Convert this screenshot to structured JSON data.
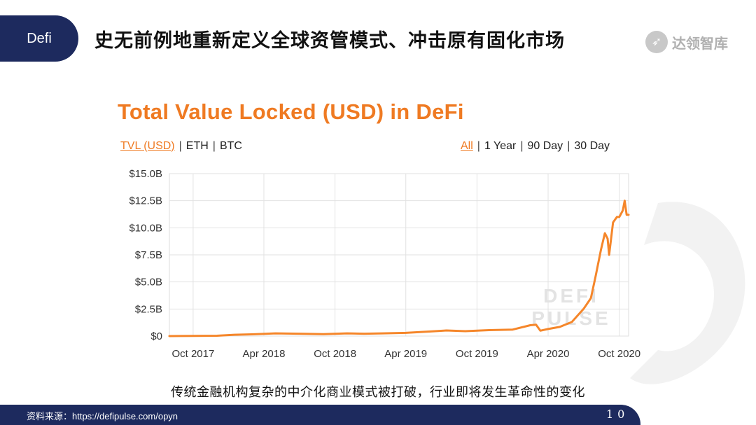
{
  "header": {
    "tag": "Defi",
    "title": "史无前例地重新定义全球资管模式、冲击原有固化市场",
    "logo_text": "达领智库",
    "logo_icon": "rocket-icon"
  },
  "chart": {
    "title": "Total Value Locked (USD) in DeFi",
    "toggles_left": [
      "TVL (USD)",
      "ETH",
      "BTC"
    ],
    "toggles_left_active": "TVL (USD)",
    "toggles_right": [
      "All",
      "1 Year",
      "90 Day",
      "30 Day"
    ],
    "toggles_right_active": "All",
    "watermark": [
      "DEFI",
      "PULSE"
    ]
  },
  "chart_data": {
    "type": "line",
    "title": "Total Value Locked (USD) in DeFi",
    "xlabel": "",
    "ylabel": "",
    "y_unit": "USD billions",
    "ylim": [
      0,
      15
    ],
    "xlim": [
      "2017-08-01",
      "2020-10-25"
    ],
    "yticks": [
      {
        "value": 0,
        "label": "$0"
      },
      {
        "value": 2.5,
        "label": "$2.5B"
      },
      {
        "value": 5,
        "label": "$5.0B"
      },
      {
        "value": 7.5,
        "label": "$7.5B"
      },
      {
        "value": 10,
        "label": "$10.0B"
      },
      {
        "value": 12.5,
        "label": "$12.5B"
      },
      {
        "value": 15,
        "label": "$15.0B"
      }
    ],
    "xticks": [
      {
        "date": "2017-10-01",
        "label": "Oct 2017"
      },
      {
        "date": "2018-04-01",
        "label": "Apr 2018"
      },
      {
        "date": "2018-10-01",
        "label": "Oct 2018"
      },
      {
        "date": "2019-04-01",
        "label": "Apr 2019"
      },
      {
        "date": "2019-10-01",
        "label": "Oct 2019"
      },
      {
        "date": "2020-04-01",
        "label": "Apr 2020"
      },
      {
        "date": "2020-10-01",
        "label": "Oct 2020"
      }
    ],
    "grid": true,
    "series": [
      {
        "color": "#f5862a",
        "points": [
          [
            "2017-08-01",
            0.0
          ],
          [
            "2017-10-01",
            0.02
          ],
          [
            "2017-12-01",
            0.03
          ],
          [
            "2018-01-15",
            0.12
          ],
          [
            "2018-03-01",
            0.16
          ],
          [
            "2018-05-01",
            0.25
          ],
          [
            "2018-07-01",
            0.22
          ],
          [
            "2018-09-01",
            0.18
          ],
          [
            "2018-11-01",
            0.25
          ],
          [
            "2018-12-15",
            0.22
          ],
          [
            "2019-02-01",
            0.25
          ],
          [
            "2019-04-01",
            0.3
          ],
          [
            "2019-06-01",
            0.42
          ],
          [
            "2019-07-15",
            0.52
          ],
          [
            "2019-09-01",
            0.45
          ],
          [
            "2019-11-01",
            0.55
          ],
          [
            "2020-01-01",
            0.6
          ],
          [
            "2020-02-15",
            1.0
          ],
          [
            "2020-03-01",
            1.05
          ],
          [
            "2020-03-12",
            0.5
          ],
          [
            "2020-04-01",
            0.65
          ],
          [
            "2020-05-01",
            0.85
          ],
          [
            "2020-06-01",
            1.3
          ],
          [
            "2020-07-01",
            2.5
          ],
          [
            "2020-07-20",
            3.5
          ],
          [
            "2020-08-01",
            5.5
          ],
          [
            "2020-08-15",
            8.0
          ],
          [
            "2020-08-25",
            9.5
          ],
          [
            "2020-09-01",
            9.0
          ],
          [
            "2020-09-05",
            7.5
          ],
          [
            "2020-09-15",
            10.5
          ],
          [
            "2020-09-25",
            11.0
          ],
          [
            "2020-10-01",
            11.0
          ],
          [
            "2020-10-10",
            11.6
          ],
          [
            "2020-10-15",
            12.5
          ],
          [
            "2020-10-20",
            11.2
          ],
          [
            "2020-10-25",
            11.2
          ]
        ]
      }
    ]
  },
  "caption": "传统金融机构复杂的中介化商业模式被打破，行业即将发生革命性的变化",
  "footer": {
    "source": "资料来源：https://defipulse.com/opyn",
    "page": "10"
  },
  "colors": {
    "navy": "#1d2a5e",
    "accent_orange": "#ef7a22",
    "line_orange": "#f5862a"
  }
}
